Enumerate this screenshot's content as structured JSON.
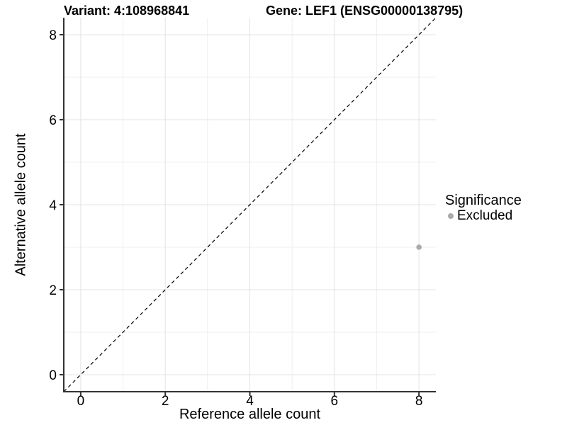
{
  "titles": {
    "variant": "Variant: 4:108968841",
    "gene": "Gene: LEF1 (ENSG00000138795)"
  },
  "colors": {
    "background": "#ffffff",
    "axis": "#333333",
    "grid_major": "#e3e3e3",
    "grid_minor": "#efefef",
    "reference_line": "#000000",
    "excluded_point": "#aaaaaa",
    "text": "#000000"
  },
  "chart_data": {
    "type": "scatter",
    "title_left": "Variant: 4:108968841",
    "title_right": "Gene: LEF1 (ENSG00000138795)",
    "xlabel": "Reference allele count",
    "ylabel": "Alternative allele count",
    "xlim": [
      -0.4,
      8.4
    ],
    "ylim": [
      -0.4,
      8.4
    ],
    "x_ticks": [
      0,
      2,
      4,
      6,
      8
    ],
    "y_ticks": [
      0,
      2,
      4,
      6,
      8
    ],
    "minor_gridlines_x": [
      1,
      3,
      5,
      7
    ],
    "minor_gridlines_y": [
      1,
      3,
      5,
      7
    ],
    "grid": true,
    "reference_line": {
      "equation": "y = x",
      "style": "dashed",
      "color": "#000000"
    },
    "series": [
      {
        "name": "Excluded",
        "color": "#aaaaaa",
        "points": [
          {
            "x": 8,
            "y": 3
          }
        ]
      }
    ],
    "legend": {
      "title": "Significance",
      "position": "right",
      "items": [
        {
          "label": "Excluded",
          "color": "#aaaaaa"
        }
      ]
    }
  }
}
